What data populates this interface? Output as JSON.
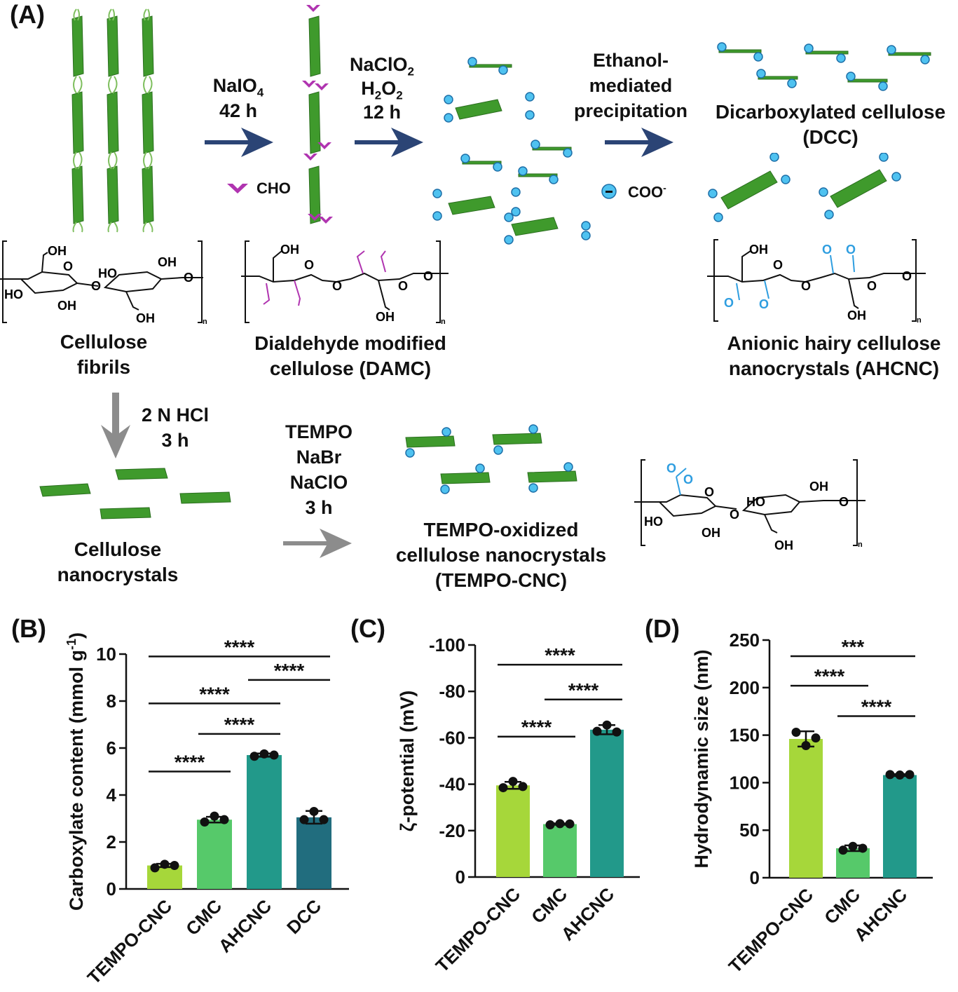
{
  "panels": {
    "a": "(A)",
    "b": "(B)",
    "c": "(C)",
    "d": "(D)"
  },
  "scheme": {
    "step1": {
      "reagent": "NaIO",
      "sub": "4",
      "time": "42 h"
    },
    "step2": {
      "reagent1": "NaClO",
      "sub1": "2",
      "reagent2": "H",
      "sub2": "2",
      "reagent2b": "O",
      "sub2b": "2",
      "time": "12 h"
    },
    "step3": {
      "line1": "Ethanol-",
      "line2": "mediated",
      "line3": "precipitation"
    },
    "step4": {
      "line1": "2 N HCl",
      "line2": "3 h"
    },
    "step5": {
      "line1": "TEMPO",
      "line2": "NaBr",
      "line3": "NaClO",
      "line4": "3 h"
    },
    "legend_cho": "CHO",
    "legend_coo": "COO",
    "legend_coo_sup": "-",
    "labels": {
      "cellulose_fibrils": [
        "Cellulose",
        "fibrils"
      ],
      "damc": [
        "Dialdehyde modified",
        "cellulose (DAMC)"
      ],
      "dcc": [
        "Dicarboxylated cellulose",
        "(DCC)"
      ],
      "ahcnc": [
        "Anionic hairy cellulose",
        "nanocrystals (AHCNC)"
      ],
      "cnc": [
        "Cellulose",
        "nanocrystals"
      ],
      "tempo_cnc": [
        "TEMPO-oxidized",
        "cellulose nanocrystals",
        "(TEMPO-CNC)"
      ]
    },
    "chem": {
      "oh": "OH",
      "ho": "HO",
      "o": "O",
      "n": "n",
      "o_minus": "O"
    }
  },
  "colors": {
    "lime": "#a6d73a",
    "green": "#56c96a",
    "teal": "#22998a",
    "darkteal": "#216d7e",
    "arrow_blue": "#2b4475",
    "arrow_gray": "#8c8c8c",
    "purple": "#b034b0",
    "cyan": "#2f9ee0",
    "fibril_green": "#3f9a2c"
  },
  "chart_data": [
    {
      "type": "bar",
      "panel": "(B)",
      "ylabel": "Carboxylate content (mmol g-1)",
      "categories": [
        "TEMPO-CNC",
        "CMC",
        "AHCNC",
        "DCC"
      ],
      "values": [
        1.0,
        2.95,
        5.7,
        3.05
      ],
      "errors": [
        0.07,
        0.12,
        0.07,
        0.27
      ],
      "points": [
        [
          0.9,
          1.05,
          1.0
        ],
        [
          2.85,
          3.1,
          2.95
        ],
        [
          5.65,
          5.75,
          5.7
        ],
        [
          2.95,
          3.3,
          2.95
        ]
      ],
      "colors": [
        "#a6d73a",
        "#56c96a",
        "#22998a",
        "#216d7e"
      ],
      "ylim": [
        0,
        10
      ],
      "yticks": [
        0,
        2,
        4,
        6,
        8,
        10
      ],
      "significance": [
        {
          "from": 0,
          "to": 1,
          "y": 5.0,
          "label": "****"
        },
        {
          "from": 1,
          "to": 2,
          "y": 6.6,
          "label": "****"
        },
        {
          "from": 0,
          "to": 2,
          "y": 7.9,
          "label": "****"
        },
        {
          "from": 2,
          "to": 3,
          "y": 8.9,
          "label": "****"
        },
        {
          "from": 0,
          "to": 3,
          "y": 9.9,
          "label": "****"
        }
      ]
    },
    {
      "type": "bar",
      "panel": "(C)",
      "ylabel": "ζ-potential (mV)",
      "categories": [
        "TEMPO-CNC",
        "CMC",
        "AHCNC"
      ],
      "values": [
        -39.5,
        -22.8,
        -63.5
      ],
      "errors": [
        1.5,
        0.3,
        2.0
      ],
      "points": [
        [
          -38.5,
          -41.2,
          -39.0
        ],
        [
          -22.5,
          -23.0,
          -22.9
        ],
        [
          -62.8,
          -65.5,
          -62.5
        ]
      ],
      "colors": [
        "#a6d73a",
        "#56c96a",
        "#22998a"
      ],
      "ylim": [
        0,
        -100
      ],
      "yticks": [
        0,
        -20,
        -40,
        -60,
        -80,
        -100
      ],
      "significance": [
        {
          "from": 0,
          "to": 1,
          "y": -60.5,
          "label": "****"
        },
        {
          "from": 1,
          "to": 2,
          "y": -76.5,
          "label": "****"
        },
        {
          "from": 0,
          "to": 2,
          "y": -91.5,
          "label": "****"
        }
      ]
    },
    {
      "type": "bar",
      "panel": "(D)",
      "ylabel": "Hydrodynamic size (nm)",
      "categories": [
        "TEMPO-CNC",
        "CMC",
        "AHCNC"
      ],
      "values": [
        146,
        31,
        108
      ],
      "errors": [
        8,
        3,
        1
      ],
      "points": [
        [
          153,
          139,
          147
        ],
        [
          29,
          33,
          31
        ],
        [
          108.5,
          108,
          108.5
        ]
      ],
      "colors": [
        "#a6d73a",
        "#56c96a",
        "#22998a"
      ],
      "ylim": [
        0,
        250
      ],
      "yticks": [
        0,
        50,
        100,
        150,
        200,
        250
      ],
      "significance": [
        {
          "from": 1,
          "to": 2,
          "y": 170,
          "label": "****"
        },
        {
          "from": 0,
          "to": 1,
          "y": 202,
          "label": "****"
        },
        {
          "from": 0,
          "to": 2,
          "y": 233,
          "label": "***"
        }
      ]
    }
  ]
}
